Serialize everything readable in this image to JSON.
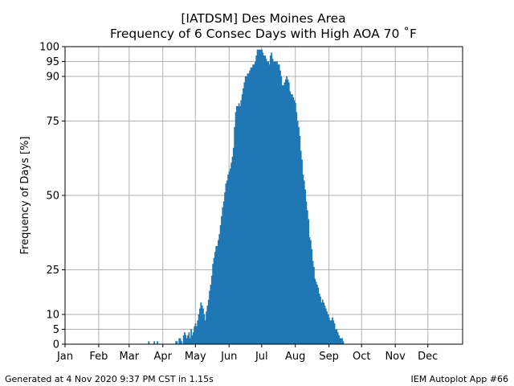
{
  "header": {
    "title_line1": "[IATDSM] Des Moines Area",
    "title_line2": "Frequency of 6 Consec Days with High AOA 70 ˚F"
  },
  "footer": {
    "left": "Generated at 4 Nov 2020 9:37 PM CST in 1.15s",
    "right": "IEM Autoplot App #66"
  },
  "colors": {
    "bar": "#1f77b4",
    "grid": "#b0b0b0"
  },
  "chart_data": {
    "type": "bar",
    "title": "[IATDSM] Des Moines Area\nFrequency of 6 Consec Days with High AOA 70 ˚F",
    "ylabel": "Frequency of Days [%]",
    "xlabel": "",
    "x_unit": "day of year",
    "xlim": [
      1,
      367
    ],
    "ylim": [
      0,
      100
    ],
    "grid": true,
    "y_ticks": [
      0,
      5,
      10,
      25,
      50,
      75,
      90,
      95,
      100
    ],
    "x_ticks": [
      {
        "label": "Jan",
        "day": 1
      },
      {
        "label": "Feb",
        "day": 32
      },
      {
        "label": "Mar",
        "day": 60
      },
      {
        "label": "Apr",
        "day": 91
      },
      {
        "label": "May",
        "day": 121
      },
      {
        "label": "Jun",
        "day": 152
      },
      {
        "label": "Jul",
        "day": 182
      },
      {
        "label": "Aug",
        "day": 213
      },
      {
        "label": "Sep",
        "day": 244
      },
      {
        "label": "Oct",
        "day": 274
      },
      {
        "label": "Nov",
        "day": 305
      },
      {
        "label": "Dec",
        "day": 335
      }
    ],
    "series": [
      {
        "points": [
          [
            78,
            1
          ],
          [
            83,
            1
          ],
          [
            86,
            1
          ],
          [
            103,
            1
          ],
          [
            104,
            1
          ],
          [
            106,
            2
          ],
          [
            107,
            2
          ],
          [
            108,
            1
          ],
          [
            110,
            3
          ],
          [
            111,
            4
          ],
          [
            112,
            3
          ],
          [
            113,
            2
          ],
          [
            114,
            3
          ],
          [
            115,
            4
          ],
          [
            116,
            2
          ],
          [
            117,
            5
          ],
          [
            118,
            3
          ],
          [
            119,
            4
          ],
          [
            120,
            6
          ],
          [
            121,
            7
          ],
          [
            122,
            6
          ],
          [
            123,
            8
          ],
          [
            124,
            10
          ],
          [
            125,
            12
          ],
          [
            126,
            14
          ],
          [
            127,
            13
          ],
          [
            128,
            12
          ],
          [
            129,
            10
          ],
          [
            130,
            8
          ],
          [
            131,
            11
          ],
          [
            132,
            13
          ],
          [
            133,
            15
          ],
          [
            134,
            18
          ],
          [
            135,
            20
          ],
          [
            136,
            23
          ],
          [
            137,
            27
          ],
          [
            138,
            29
          ],
          [
            139,
            31
          ],
          [
            140,
            33
          ],
          [
            141,
            33
          ],
          [
            142,
            35
          ],
          [
            143,
            37
          ],
          [
            144,
            40
          ],
          [
            145,
            43
          ],
          [
            146,
            46
          ],
          [
            147,
            48
          ],
          [
            148,
            51
          ],
          [
            149,
            54
          ],
          [
            150,
            55
          ],
          [
            151,
            57
          ],
          [
            152,
            58
          ],
          [
            153,
            59
          ],
          [
            154,
            61
          ],
          [
            155,
            63
          ],
          [
            156,
            66
          ],
          [
            157,
            73
          ],
          [
            158,
            78
          ],
          [
            159,
            80
          ],
          [
            160,
            80
          ],
          [
            161,
            81
          ],
          [
            162,
            80
          ],
          [
            163,
            82
          ],
          [
            164,
            84
          ],
          [
            165,
            86
          ],
          [
            166,
            88
          ],
          [
            167,
            90
          ],
          [
            168,
            90
          ],
          [
            169,
            91
          ],
          [
            170,
            91
          ],
          [
            171,
            92
          ],
          [
            172,
            93
          ],
          [
            173,
            93
          ],
          [
            174,
            94
          ],
          [
            175,
            94
          ],
          [
            176,
            95
          ],
          [
            177,
            97
          ],
          [
            178,
            99
          ],
          [
            179,
            99
          ],
          [
            180,
            99
          ],
          [
            181,
            99
          ],
          [
            182,
            99
          ],
          [
            183,
            98
          ],
          [
            184,
            97
          ],
          [
            185,
            97
          ],
          [
            186,
            96
          ],
          [
            187,
            95
          ],
          [
            188,
            95
          ],
          [
            189,
            94
          ],
          [
            190,
            97
          ],
          [
            191,
            98
          ],
          [
            192,
            96
          ],
          [
            193,
            95
          ],
          [
            194,
            95
          ],
          [
            195,
            95
          ],
          [
            196,
            95
          ],
          [
            197,
            94
          ],
          [
            198,
            94
          ],
          [
            199,
            92
          ],
          [
            200,
            90
          ],
          [
            201,
            87
          ],
          [
            202,
            87
          ],
          [
            203,
            88
          ],
          [
            204,
            89
          ],
          [
            205,
            90
          ],
          [
            206,
            89
          ],
          [
            207,
            88
          ],
          [
            208,
            85
          ],
          [
            209,
            84
          ],
          [
            210,
            84
          ],
          [
            211,
            83
          ],
          [
            212,
            82
          ],
          [
            213,
            81
          ],
          [
            214,
            78
          ],
          [
            215,
            75
          ],
          [
            216,
            73
          ],
          [
            217,
            70
          ],
          [
            218,
            65
          ],
          [
            219,
            62
          ],
          [
            220,
            57
          ],
          [
            221,
            55
          ],
          [
            222,
            52
          ],
          [
            223,
            48
          ],
          [
            224,
            45
          ],
          [
            225,
            42
          ],
          [
            226,
            36
          ],
          [
            227,
            35
          ],
          [
            228,
            32
          ],
          [
            229,
            28
          ],
          [
            230,
            26
          ],
          [
            231,
            22
          ],
          [
            232,
            21
          ],
          [
            233,
            20
          ],
          [
            234,
            19
          ],
          [
            235,
            17
          ],
          [
            236,
            16
          ],
          [
            237,
            14
          ],
          [
            238,
            15
          ],
          [
            239,
            14
          ],
          [
            240,
            13
          ],
          [
            241,
            12
          ],
          [
            242,
            11
          ],
          [
            243,
            10
          ],
          [
            244,
            9
          ],
          [
            245,
            8
          ],
          [
            246,
            8
          ],
          [
            247,
            9
          ],
          [
            248,
            8
          ],
          [
            249,
            7
          ],
          [
            250,
            5
          ],
          [
            251,
            5
          ],
          [
            252,
            4
          ],
          [
            253,
            3
          ],
          [
            254,
            2
          ],
          [
            255,
            2
          ],
          [
            256,
            2
          ],
          [
            257,
            1
          ]
        ]
      }
    ]
  }
}
